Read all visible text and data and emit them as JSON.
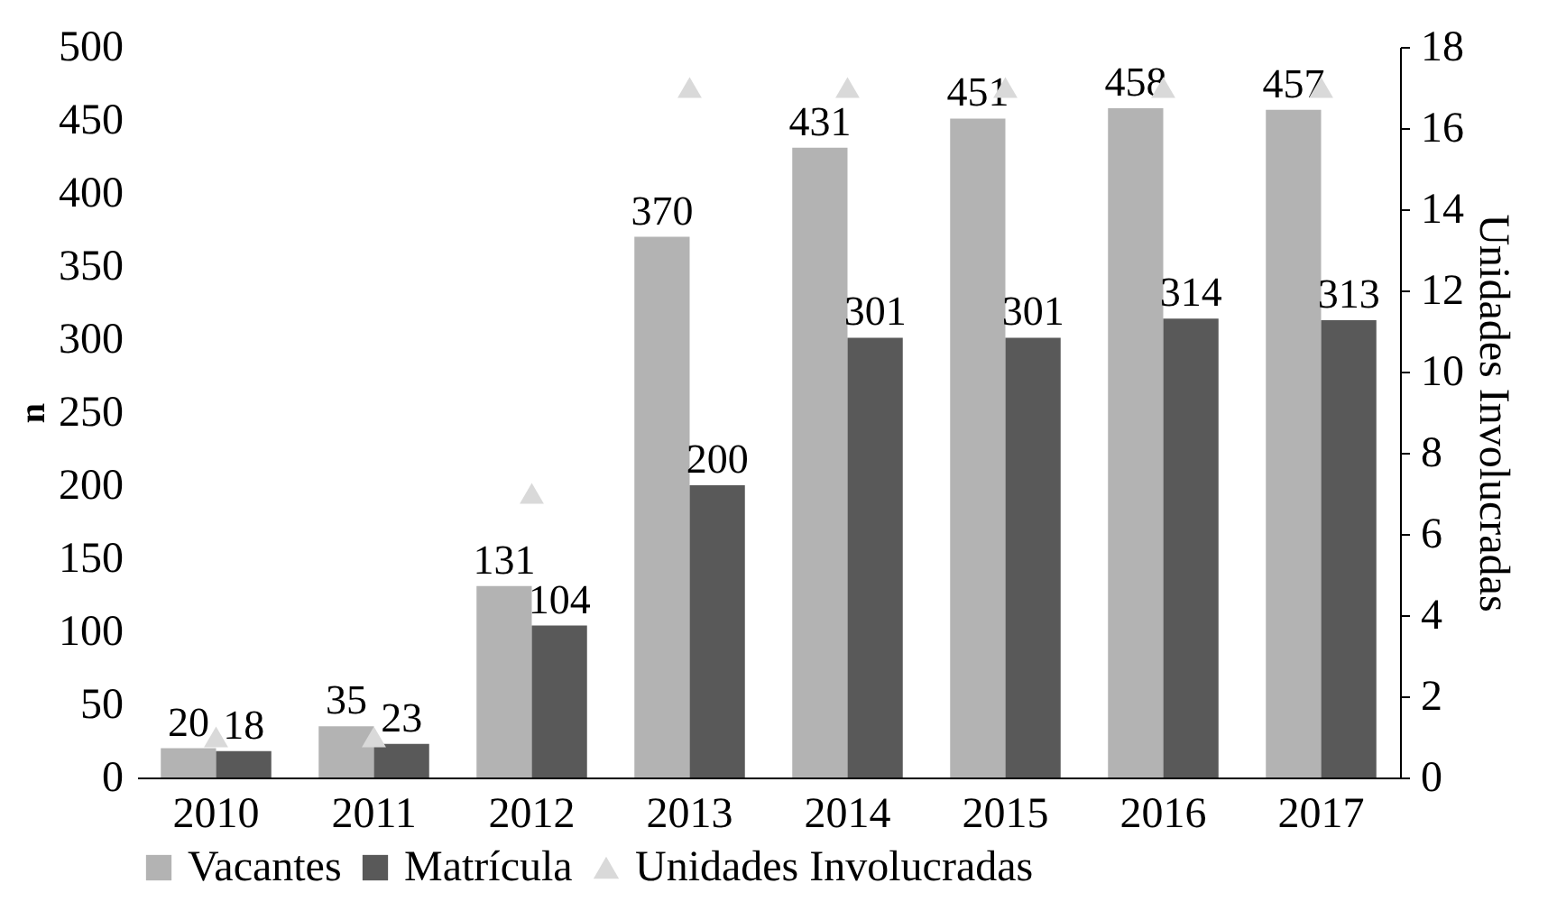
{
  "chart_data": {
    "type": "bar",
    "ylabel": "n",
    "y2label": "Unidades Involucradas",
    "categories": [
      "2010",
      "2011",
      "2012",
      "2013",
      "2014",
      "2015",
      "2016",
      "2017"
    ],
    "series": [
      {
        "name": "Vacantes",
        "color": "#b3b3b3",
        "values": [
          20,
          35,
          131,
          370,
          431,
          451,
          458,
          457
        ],
        "value_labels": [
          "20",
          "35",
          "131",
          "370",
          "431",
          "451",
          "458",
          "457"
        ]
      },
      {
        "name": "Matrícula",
        "color": "#595959",
        "values": [
          18,
          23,
          104,
          200,
          301,
          301,
          314,
          313
        ],
        "value_labels": [
          "18",
          "23",
          "104",
          "200",
          "301",
          "301",
          "314",
          "313"
        ]
      },
      {
        "name": "Unidades Involucradas",
        "type": "scatter",
        "axis": "y2",
        "marker": "triangle",
        "color": "#d9d9d9",
        "values": [
          1,
          1,
          7,
          17,
          17,
          17,
          17,
          17
        ]
      }
    ],
    "ylim": [
      0,
      500
    ],
    "yticks": [
      0,
      50,
      100,
      150,
      200,
      250,
      300,
      350,
      400,
      450,
      500
    ],
    "y2lim": [
      0,
      18
    ],
    "y2ticks": [
      0,
      2,
      4,
      6,
      8,
      10,
      12,
      14,
      16,
      18
    ],
    "legend": "bottom",
    "grid": false
  }
}
